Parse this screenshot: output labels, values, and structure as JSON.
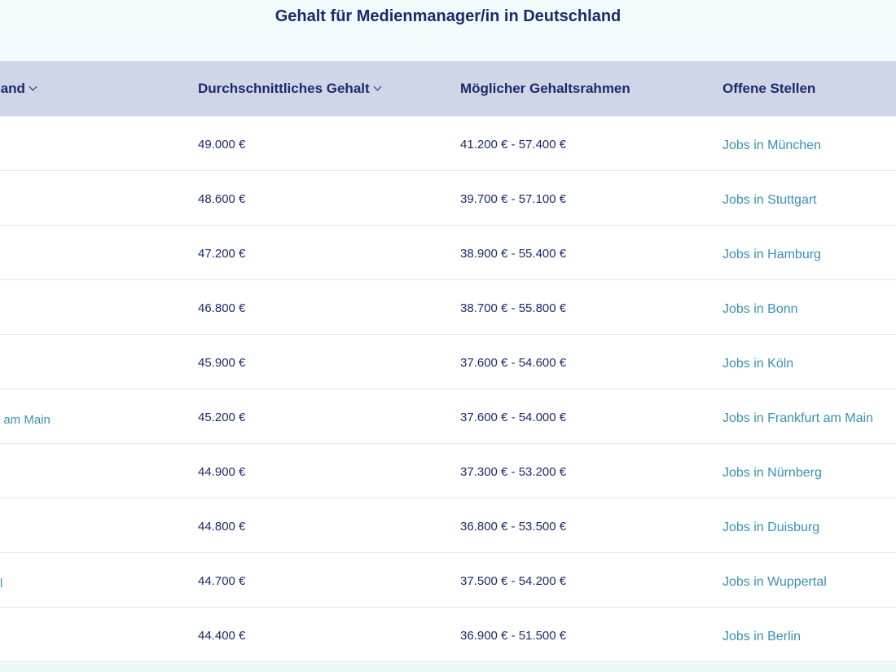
{
  "title": "Gehalt für Medienmanager/in in Deutschland",
  "columns": {
    "city": "land",
    "avg": "Durchschnittliches Gehalt",
    "range": "Möglicher Gehaltsrahmen",
    "jobs": "Offene Stellen"
  },
  "rows": [
    {
      "city": "",
      "avg": "49.000 €",
      "range": "41.200 € - 57.400 €",
      "jobs": "Jobs in München"
    },
    {
      "city": "",
      "avg": "48.600 €",
      "range": "39.700 € - 57.100 €",
      "jobs": "Jobs in Stuttgart"
    },
    {
      "city": "",
      "avg": "47.200 €",
      "range": "38.900 € - 55.400 €",
      "jobs": "Jobs in Hamburg"
    },
    {
      "city": "",
      "avg": "46.800 €",
      "range": "38.700 € - 55.800 €",
      "jobs": "Jobs in Bonn"
    },
    {
      "city": "",
      "avg": "45.900 €",
      "range": "37.600 € - 54.600 €",
      "jobs": "Jobs in Köln"
    },
    {
      "city": "t am Main",
      "avg": "45.200 €",
      "range": "37.600 € - 54.000 €",
      "jobs": "Jobs in Frankfurt am Main"
    },
    {
      "city": "",
      "avg": "44.900 €",
      "range": "37.300 € - 53.200 €",
      "jobs": "Jobs in Nürnberg"
    },
    {
      "city": "",
      "avg": "44.800 €",
      "range": "36.800 € - 53.500 €",
      "jobs": "Jobs in Duisburg"
    },
    {
      "city": "l",
      "avg": "44.700 €",
      "range": "37.500 € - 54.200 €",
      "jobs": "Jobs in Wuppertal"
    },
    {
      "city": "",
      "avg": "44.400 €",
      "range": "36.900 € - 51.500 €",
      "jobs": "Jobs in Berlin"
    }
  ]
}
